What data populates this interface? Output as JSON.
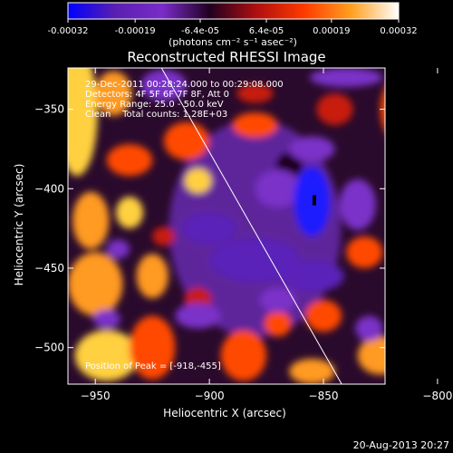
{
  "chart_data": {
    "type": "heatmap",
    "title": "Reconstructed RHESSI Image",
    "xlabel": "Heliocentric X (arcsec)",
    "ylabel": "Heliocentric Y (arcsec)",
    "xlim": [
      -962,
      -823
    ],
    "ylim": [
      -523,
      -324
    ],
    "xticks": [
      -950,
      -900,
      -850,
      -800
    ],
    "yticks": [
      -350,
      -400,
      -450,
      -500
    ],
    "colorbar": {
      "label": "(photons cm⁻² s⁻¹ asec⁻²)",
      "range": [
        -0.00032,
        0.00032
      ],
      "ticks": [
        "-0.00032",
        "-0.00019",
        "-6.4e-05",
        "6.4e-05",
        "0.00019",
        "0.00032"
      ],
      "tick_values": [
        -0.00032,
        -0.00019,
        -6.4e-05,
        6.4e-05,
        0.00019,
        0.00032
      ],
      "colors": [
        "#0000ff",
        "#5a1fb0",
        "#7a2cc8",
        "#200020",
        "#b01010",
        "#ff3a00",
        "#ffa020",
        "#ffffff"
      ]
    },
    "annotations": [
      "29-Dec-2011 00:28:24.000 to 00:29:08.000",
      "Detectors: 4F 5F 6F 7F 8F, Att 0",
      "Energy Range: 25.0 - 50.0 keV",
      "Clean    Total counts: 1.28E+03"
    ],
    "peak_label": "Position of Peak = [-918,-455]",
    "peak_position": [
      -918,
      -455
    ],
    "limb_line": {
      "x": [
        -921,
        -842
      ],
      "y": [
        -324,
        -523
      ]
    },
    "marker": {
      "x": -854,
      "y": -407
    },
    "field_blobs": [
      {
        "x": -958,
        "y": -352,
        "rx": 9,
        "ry": 40,
        "v": 0.9
      },
      {
        "x": -942,
        "y": -340,
        "rx": 8,
        "ry": 14,
        "v": 0.85
      },
      {
        "x": -935,
        "y": -382,
        "rx": 10,
        "ry": 10,
        "v": 0.7
      },
      {
        "x": -952,
        "y": -420,
        "rx": 8,
        "ry": 18,
        "v": 0.8
      },
      {
        "x": -935,
        "y": -415,
        "rx": 6,
        "ry": 10,
        "v": 0.9
      },
      {
        "x": -950,
        "y": -460,
        "rx": 12,
        "ry": 20,
        "v": 0.85
      },
      {
        "x": -925,
        "y": -455,
        "rx": 7,
        "ry": 14,
        "v": 0.8
      },
      {
        "x": -945,
        "y": -505,
        "rx": 14,
        "ry": 16,
        "v": 0.9
      },
      {
        "x": -925,
        "y": -500,
        "rx": 10,
        "ry": 20,
        "v": 0.75
      },
      {
        "x": -905,
        "y": -470,
        "rx": 6,
        "ry": 8,
        "v": 0.55
      },
      {
        "x": -910,
        "y": -370,
        "rx": 10,
        "ry": 12,
        "v": 0.7
      },
      {
        "x": -905,
        "y": -395,
        "rx": 6,
        "ry": 8,
        "v": 0.9
      },
      {
        "x": -880,
        "y": -360,
        "rx": 10,
        "ry": 8,
        "v": 0.6
      },
      {
        "x": -880,
        "y": -340,
        "rx": 8,
        "ry": 6,
        "v": 0.55
      },
      {
        "x": -885,
        "y": -505,
        "rx": 10,
        "ry": 16,
        "v": 0.75
      },
      {
        "x": -870,
        "y": -485,
        "rx": 6,
        "ry": 8,
        "v": 0.65
      },
      {
        "x": -855,
        "y": -515,
        "rx": 10,
        "ry": 8,
        "v": 0.8
      },
      {
        "x": -850,
        "y": -480,
        "rx": 8,
        "ry": 10,
        "v": 0.7
      },
      {
        "x": -845,
        "y": -350,
        "rx": 8,
        "ry": 10,
        "v": 0.55
      },
      {
        "x": -815,
        "y": -350,
        "rx": 10,
        "ry": 22,
        "v": 0.7
      },
      {
        "x": -808,
        "y": -385,
        "rx": 8,
        "ry": 14,
        "v": 0.95
      },
      {
        "x": -805,
        "y": -420,
        "rx": 7,
        "ry": 10,
        "v": 0.7
      },
      {
        "x": -832,
        "y": -440,
        "rx": 8,
        "ry": 10,
        "v": 0.6
      },
      {
        "x": -810,
        "y": -470,
        "rx": 10,
        "ry": 14,
        "v": 0.85
      },
      {
        "x": -825,
        "y": -505,
        "rx": 10,
        "ry": 12,
        "v": 0.8
      },
      {
        "x": -800,
        "y": -512,
        "rx": 10,
        "ry": 12,
        "v": 0.7
      },
      {
        "x": -865,
        "y": -385,
        "rx": 6,
        "ry": 8,
        "v": 0.25
      },
      {
        "x": -920,
        "y": -430,
        "rx": 5,
        "ry": 6,
        "v": 0.35
      },
      {
        "x": -870,
        "y": -400,
        "rx": 10,
        "ry": 12,
        "v": -0.5
      },
      {
        "x": -900,
        "y": -425,
        "rx": 12,
        "ry": 10,
        "v": -0.55
      },
      {
        "x": -880,
        "y": -445,
        "rx": 20,
        "ry": 14,
        "v": -0.55
      },
      {
        "x": -855,
        "y": -455,
        "rx": 14,
        "ry": 10,
        "v": -0.6
      },
      {
        "x": -835,
        "y": -410,
        "rx": 8,
        "ry": 16,
        "v": -0.5
      },
      {
        "x": -920,
        "y": -335,
        "rx": 10,
        "ry": 10,
        "v": -0.5
      },
      {
        "x": -840,
        "y": -330,
        "rx": 16,
        "ry": 6,
        "v": -0.5
      },
      {
        "x": -905,
        "y": -480,
        "rx": 10,
        "ry": 8,
        "v": -0.45
      },
      {
        "x": -870,
        "y": -470,
        "rx": 8,
        "ry": 8,
        "v": -0.45
      },
      {
        "x": -945,
        "y": -482,
        "rx": 6,
        "ry": 6,
        "v": -0.5
      },
      {
        "x": -940,
        "y": -438,
        "rx": 5,
        "ry": 6,
        "v": -0.45
      },
      {
        "x": -830,
        "y": -488,
        "rx": 6,
        "ry": 8,
        "v": -0.45
      },
      {
        "x": -855,
        "y": -408,
        "rx": 8,
        "ry": 22,
        "v": -1.0
      },
      {
        "x": -855,
        "y": -375,
        "rx": 10,
        "ry": 8,
        "v": -0.15
      }
    ]
  },
  "timestamp": "20-Aug-2013 20:27"
}
